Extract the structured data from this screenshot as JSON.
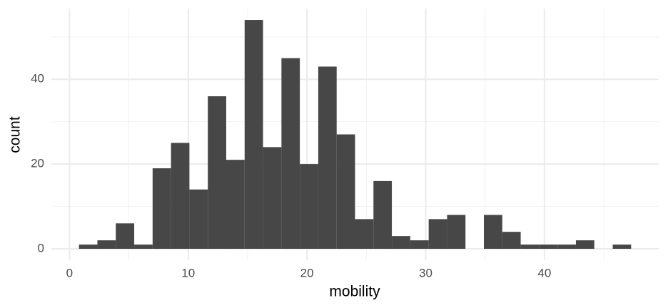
{
  "chart_data": {
    "type": "histogram",
    "x_label": "mobility",
    "y_label": "count",
    "bins": [
      0.8,
      2.35,
      3.9,
      5.45,
      7.0,
      8.55,
      10.1,
      11.65,
      13.2,
      14.75,
      16.3,
      17.85,
      19.4,
      20.95,
      22.5,
      24.05,
      25.6,
      27.15,
      28.7,
      30.25,
      31.8,
      33.35,
      34.9,
      36.45,
      38.0,
      39.55,
      41.1,
      42.65,
      44.2,
      45.75,
      47.3
    ],
    "counts": [
      1,
      2,
      6,
      1,
      19,
      25,
      14,
      36,
      21,
      54,
      24,
      45,
      20,
      43,
      27,
      7,
      16,
      3,
      2,
      7,
      8,
      0,
      8,
      4,
      1,
      1,
      1,
      2,
      0,
      1
    ],
    "color": "#474747",
    "xlim": [
      -1.525,
      49.625
    ],
    "ylim": [
      -2.7,
      56.7
    ],
    "xticks": [
      0,
      10,
      20,
      30,
      40
    ],
    "yticks": [
      0,
      20,
      40
    ],
    "x_minor_grid": [
      5,
      15,
      25,
      35,
      45
    ],
    "y_minor_grid": [
      10,
      30,
      50
    ],
    "grid": true
  }
}
